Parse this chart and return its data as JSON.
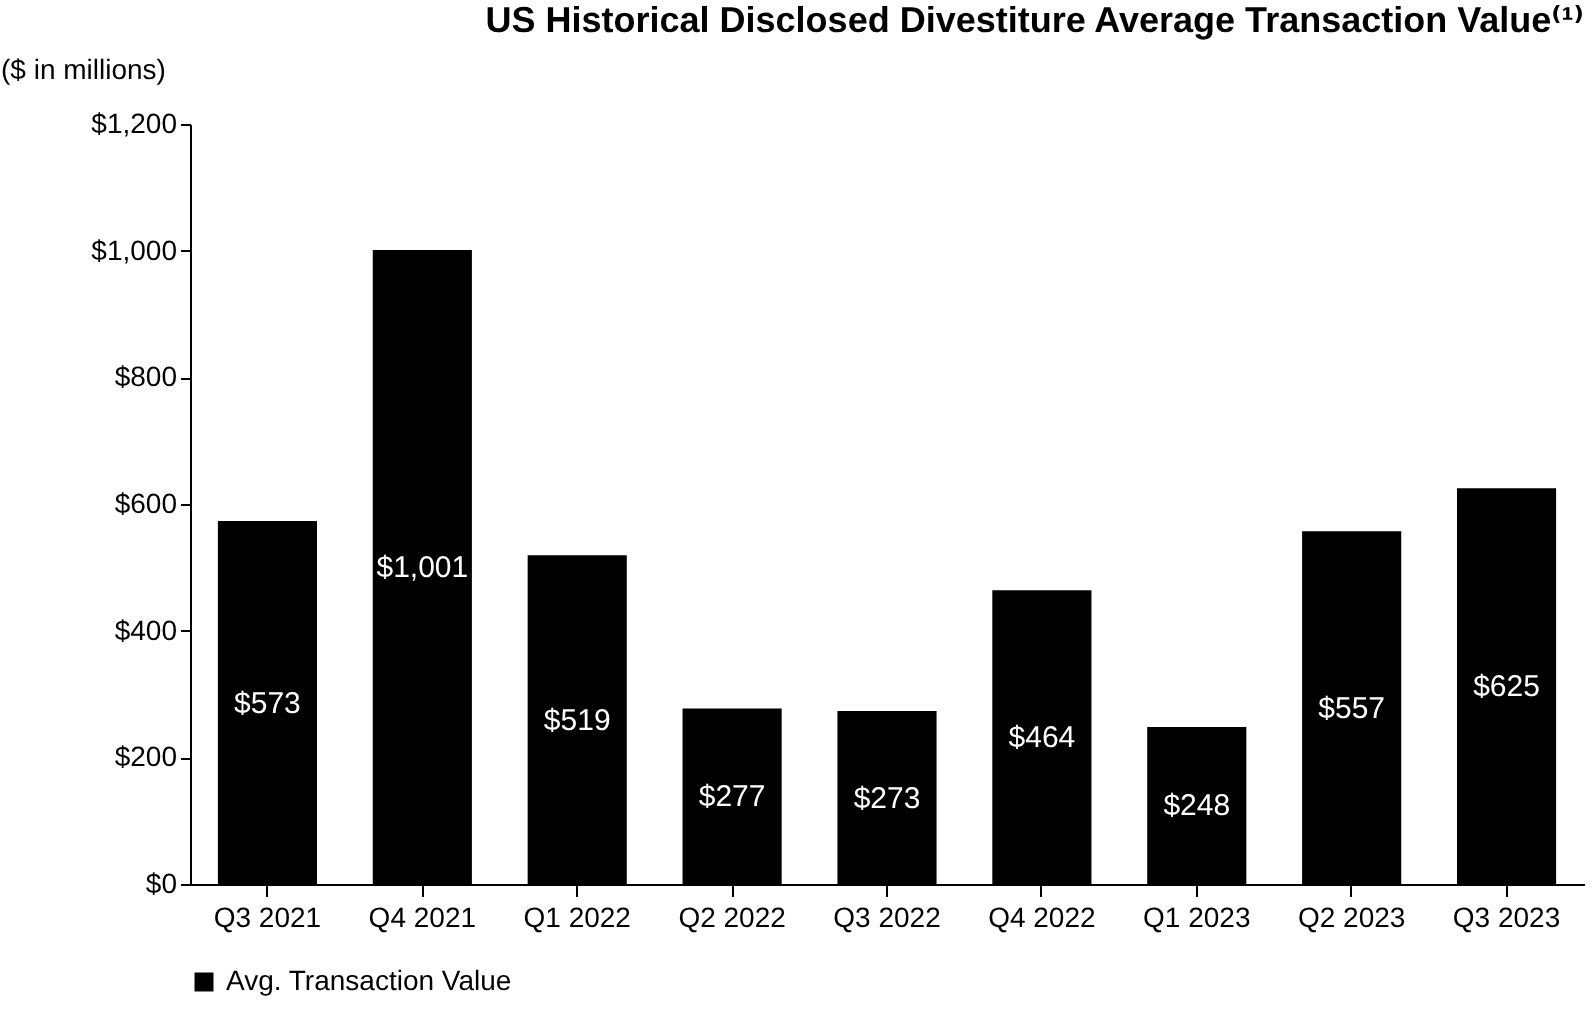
{
  "chart_data": {
    "type": "bar",
    "title": "US Historical Disclosed Divestiture Average Transaction Value⁽¹⁾",
    "ylabel": "($ in millions)",
    "categories": [
      "Q3 2021",
      "Q4 2021",
      "Q1 2022",
      "Q2 2022",
      "Q3 2022",
      "Q4 2022",
      "Q1 2023",
      "Q2 2023",
      "Q3 2023"
    ],
    "series": [
      {
        "name": "Avg. Transaction Value",
        "color": "#000000",
        "values": [
          573,
          1001,
          519,
          277,
          273,
          464,
          248,
          557,
          625
        ],
        "value_labels": [
          "$573",
          "$1,001",
          "$519",
          "$277",
          "$273",
          "$464",
          "$248",
          "$557",
          "$625"
        ]
      }
    ],
    "ylim": [
      0,
      1200
    ],
    "yticks": [
      {
        "value": 0,
        "label": "$0"
      },
      {
        "value": 200,
        "label": "$200"
      },
      {
        "value": 400,
        "label": "$400"
      },
      {
        "value": 600,
        "label": "$600"
      },
      {
        "value": 800,
        "label": "$800"
      },
      {
        "value": 1000,
        "label": "$1,000"
      },
      {
        "value": 1200,
        "label": "$1,200"
      }
    ],
    "grid": false,
    "legend": "bottom"
  }
}
